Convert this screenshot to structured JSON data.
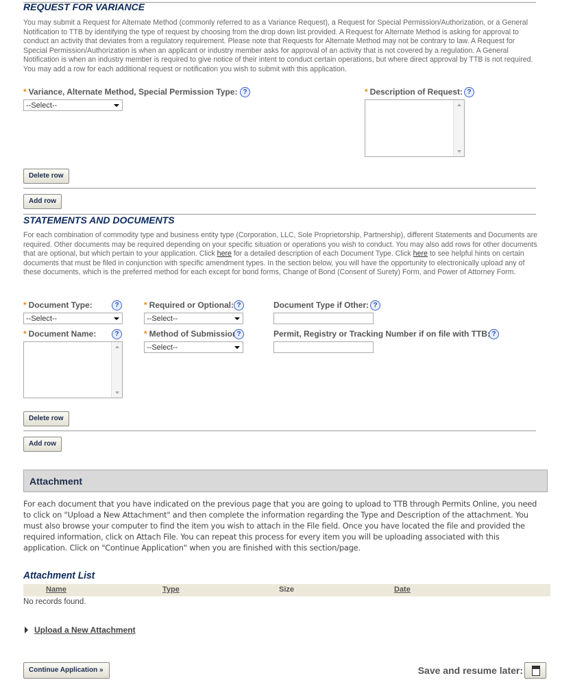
{
  "variance": {
    "title": "REQUEST FOR VARIANCE",
    "description": "You may submit a Request for Alternate Method (commonly referred to as a Variance Request), a Request for Special Permission/Authorization, or a General Notification to TTB by identifying the type of request by choosing from the drop down list provided. A Request for Alternate Method is asking for approval to conduct an activity that deviates from a regulatory requirement. Please note that Requests for Alternate Method may not be contrary to law. A Request for Special Permission/Authorization is when an applicant or industry member asks for approval of an activity that is not covered by a regulation. A General Notification is when an industry member is required to give notice of their intent to conduct certain operations, but where direct approval by TTB is not required. You may add a row for each additional request or notification you wish to submit with this application.",
    "type_label": "Variance, Alternate Method, Special Permission Type:",
    "type_value": "--Select--",
    "desc_label": "Description of Request:",
    "delete_row": "Delete row",
    "add_row": "Add row"
  },
  "statements": {
    "title": "STATEMENTS AND DOCUMENTS",
    "desc_1": "For each combination of commodity type and business entity type (Corporation, LLC, Sole Proprietorship, Partnership), different Statements and Documents are required. Other documents may be required depending on your specific situation or operations you wish to conduct. You may also add rows for other documents that are optional, but which pertain to your application. Click ",
    "link_1": "here",
    "desc_2": " for a detailed description of each Document Type. Click ",
    "link_2": "here",
    "desc_3": " to see helpful hints on certain documents that must be filed in conjunction with specific amendment types. In the section below, you will have the opportunity to electronically upload any of these documents, which is the preferred method for each except for bond forms, Change of Bond (Consent of Surety) Form, and Power of Attorney Form.",
    "doc_type_label": "Document Type:",
    "doc_type_value": "--Select--",
    "req_opt_label": "Required or Optional:",
    "req_opt_value": "--Select--",
    "doc_other_label": "Document Type if Other:",
    "doc_name_label": "Document Name:",
    "method_label": "Method of Submission:",
    "method_value": "--Select--",
    "permit_label": "Permit, Registry or Tracking Number if on file with TTB:",
    "delete_row": "Delete row",
    "add_row": "Add row"
  },
  "attachment": {
    "header": "Attachment",
    "description": "For each document that you have indicated on the previous page that you are going to upload to TTB through Permits Online, you need to click on \"Upload a New Attachment\" and then complete the information regarding the Type and Description of the attachment.  You must also browse your computer to find the item you wish to attach in the File field.  Once you have located the file and provided the required information, click on Attach File.  You can repeat this process for every item you will be uploading associated with this application.  Click on \"Continue Application\" when you are finished with this section/page.",
    "list_title": "Attachment List",
    "columns": [
      "Name",
      "Type",
      "Size",
      "Date"
    ],
    "empty": "No records found.",
    "upload_link": "Upload a New Attachment"
  },
  "footer": {
    "continue": "Continue Application »",
    "save_label": "Save and resume later:"
  },
  "help_glyph": "?"
}
